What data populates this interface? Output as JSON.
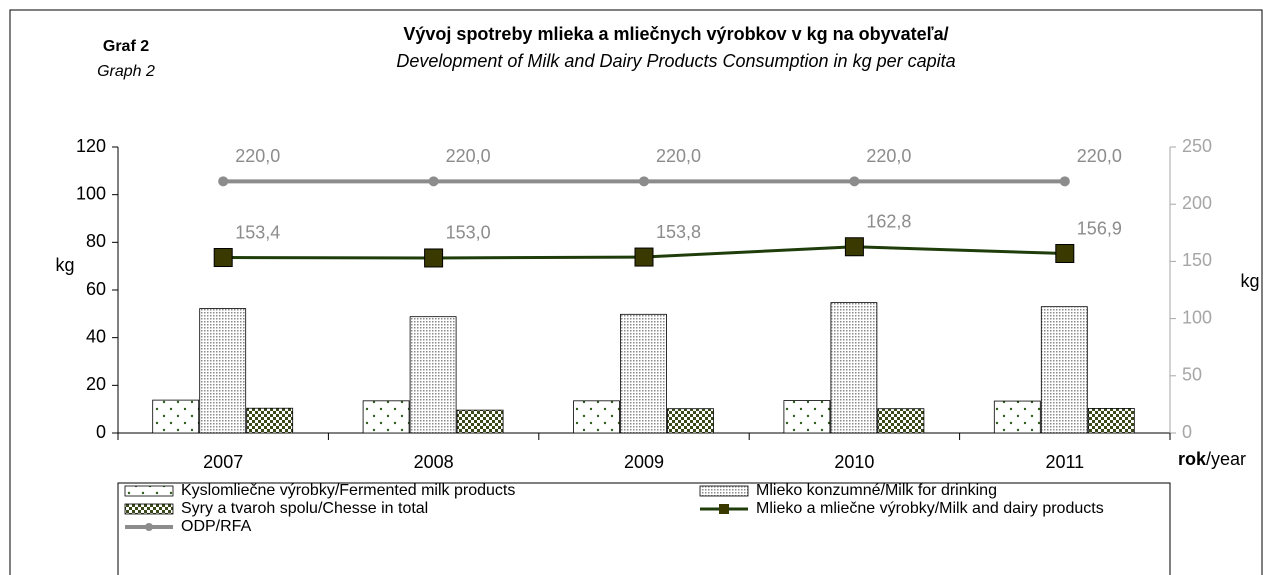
{
  "chart_data": {
    "type": "bar-line",
    "label": "Graf 2",
    "label_en": "Graph 2",
    "title": "Vývoj spotreby mlieka a mliečnych výrobkov v kg na obyvateľa/",
    "subtitle": "Development of Milk and Dairy Products Consumption in kg per capita",
    "y_label": "kg",
    "y2_label": "kg",
    "x_label": {
      "bold": "rok",
      "rest": "/year"
    },
    "categories": [
      "2007",
      "2008",
      "2009",
      "2010",
      "2011"
    ],
    "ylim": [
      0,
      120
    ],
    "yticks": [
      0,
      20,
      40,
      60,
      80,
      100,
      120
    ],
    "y2lim": [
      0,
      250
    ],
    "y2ticks": [
      0,
      50,
      100,
      150,
      200,
      250
    ],
    "series": [
      {
        "name": "Kyslomliečne výrobky/Fermented milk products",
        "kind": "bar",
        "pattern": "dots",
        "color": "#2e5e1e",
        "values": [
          13.8,
          13.5,
          13.5,
          13.6,
          13.4
        ]
      },
      {
        "name": "Mlieko konzumné/Milk for drinking",
        "kind": "bar",
        "pattern": "fine-dots",
        "color": "#8a8a8a",
        "values": [
          52.2,
          48.8,
          49.8,
          54.7,
          53.0
        ]
      },
      {
        "name": "Syry a tvaroh spolu/Chesse in total",
        "kind": "bar",
        "pattern": "checker",
        "color": "#3a4a1a",
        "values": [
          10.4,
          9.6,
          10.2,
          10.2,
          10.3
        ]
      },
      {
        "name": "Mlieko a mliečne výrobky/Milk and dairy products",
        "kind": "line",
        "marker": "square",
        "axis": "y2",
        "color": "#1f3d0a",
        "marker_color": "#3a3a00",
        "values": [
          153.4,
          153.0,
          153.8,
          162.8,
          156.9
        ],
        "value_labels": [
          "153,4",
          "153,0",
          "153,8",
          "162,8",
          "156,9"
        ]
      },
      {
        "name": "ODP/RFA",
        "kind": "line",
        "marker": "circle",
        "axis": "y2",
        "color": "#8c8c8c",
        "marker_color": "#8c8c8c",
        "values": [
          220.0,
          220.0,
          220.0,
          220.0,
          220.0
        ],
        "value_labels": [
          "220,0",
          "220,0",
          "220,0",
          "220,0",
          "220,0"
        ]
      }
    ]
  }
}
